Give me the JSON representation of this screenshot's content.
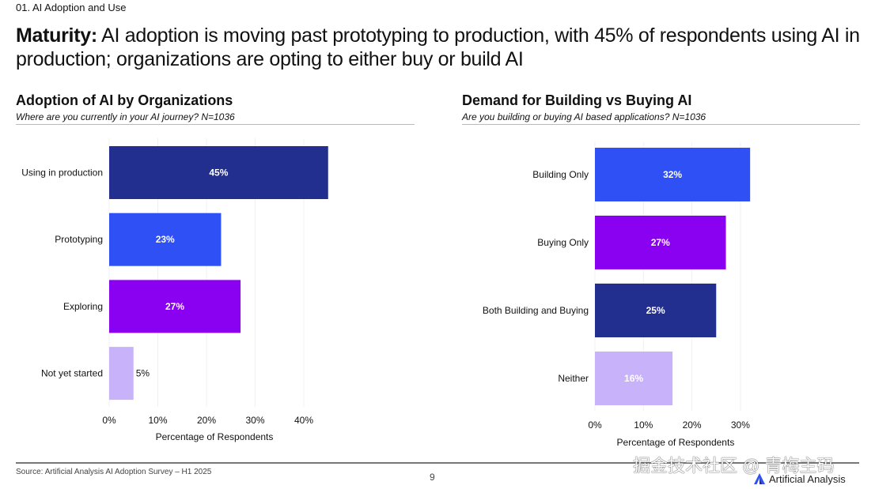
{
  "section": "01. AI Adoption and Use",
  "headline": {
    "bold": "Maturity:",
    "text": " AI adoption is moving past prototyping to production, with 45% of respondents using AI in production; organizations are opting to either buy or build AI"
  },
  "chart_data": [
    {
      "type": "bar",
      "orientation": "horizontal",
      "title": "Adoption of AI by Organizations",
      "subtitle": "Where are you currently in your AI journey? N=1036",
      "categories": [
        "Using in production",
        "Prototyping",
        "Exploring",
        "Not yet started"
      ],
      "values": [
        45,
        23,
        27,
        5
      ],
      "labels": [
        "45%",
        "23%",
        "27%",
        "5%"
      ],
      "colors": [
        "#232f8e",
        "#2e50f5",
        "#8a00f0",
        "#c8b3fb"
      ],
      "xlabel": "Percentage of Respondents",
      "xticks": [
        "0%",
        "10%",
        "20%",
        "30%",
        "40%"
      ],
      "xlim": [
        0,
        45
      ],
      "grid": true
    },
    {
      "type": "bar",
      "orientation": "horizontal",
      "title": "Demand for Building vs Buying AI",
      "subtitle": "Are you building or buying AI based applications? N=1036",
      "categories": [
        "Building Only",
        "Buying Only",
        "Both Building and Buying",
        "Neither"
      ],
      "values": [
        32,
        27,
        25,
        16
      ],
      "labels": [
        "32%",
        "27%",
        "25%",
        "16%"
      ],
      "colors": [
        "#2e50f5",
        "#8a00f0",
        "#232f8e",
        "#c8b3fb"
      ],
      "xlabel": "Percentage of Respondents",
      "xticks": [
        "0%",
        "10%",
        "20%",
        "30%"
      ],
      "xlim": [
        0,
        32
      ],
      "grid": true
    }
  ],
  "footer": {
    "source": "Source: Artificial Analysis AI Adoption Survey – H1 2025",
    "page": "9",
    "brand": "Artificial Analysis",
    "watermark": "掘金技术社区 @ 青梅主码"
  }
}
